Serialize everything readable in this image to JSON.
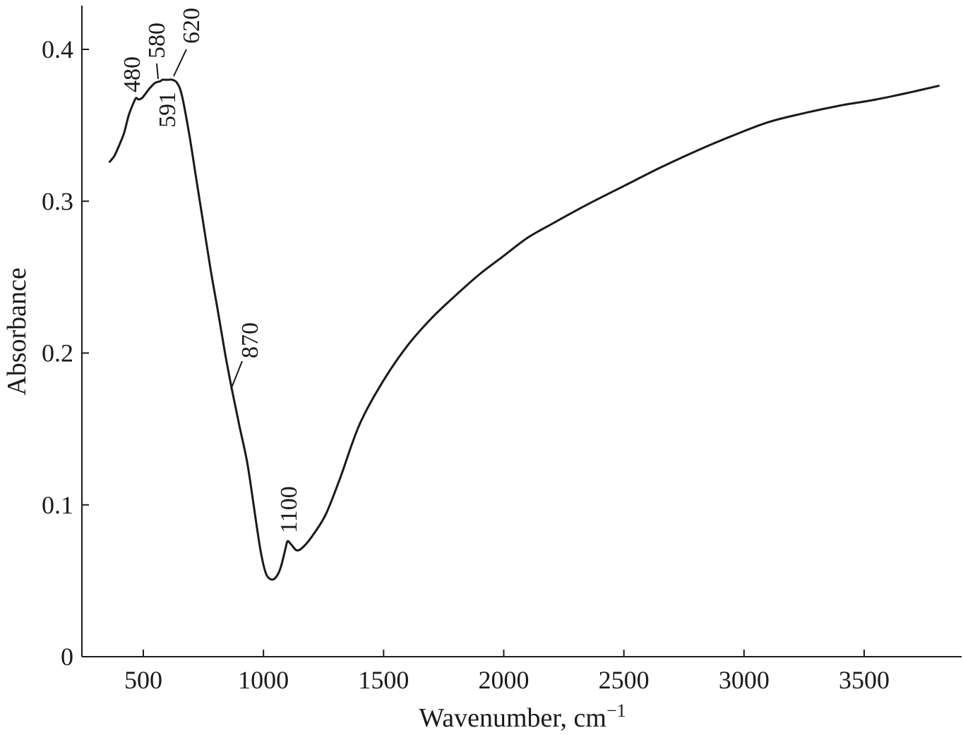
{
  "chart_data": {
    "type": "line",
    "title": "",
    "xlabel": "Wavenumber, cm",
    "xlabel_sup": "−1",
    "ylabel": "Absorbance",
    "xlim": [
      250,
      4000
    ],
    "ylim": [
      0,
      0.42
    ],
    "xticks": [
      500,
      1000,
      1500,
      2000,
      2500,
      3000,
      3500
    ],
    "xtick_labels": [
      "500",
      "1000",
      "1500",
      "2000",
      "2500",
      "3000",
      "3500"
    ],
    "yticks": [
      0,
      0.1,
      0.2,
      0.3,
      0.4
    ],
    "ytick_labels": [
      "0",
      "0.1",
      "0.2",
      "0.3",
      "0.4"
    ],
    "grid": false,
    "series": [
      {
        "x": [
          360,
          380,
          400,
          420,
          440,
          460,
          470,
          480,
          495,
          510,
          530,
          550,
          570,
          580,
          591,
          605,
          620,
          640,
          660,
          690,
          720,
          750,
          780,
          810,
          840,
          870,
          900,
          930,
          950,
          970,
          990,
          1010,
          1030,
          1050,
          1070,
          1090,
          1100,
          1115,
          1140,
          1170,
          1210,
          1260,
          1320,
          1400,
          1500,
          1600,
          1700,
          1800,
          1900,
          2000,
          2100,
          2200,
          2350,
          2500,
          2650,
          2800,
          2950,
          3100,
          3250,
          3400,
          3550,
          3700,
          3810
        ],
        "y": [
          0.326,
          0.33,
          0.337,
          0.345,
          0.357,
          0.365,
          0.368,
          0.367,
          0.368,
          0.371,
          0.375,
          0.378,
          0.379,
          0.38,
          0.38,
          0.38,
          0.38,
          0.378,
          0.37,
          0.345,
          0.315,
          0.285,
          0.255,
          0.228,
          0.2,
          0.175,
          0.152,
          0.13,
          0.11,
          0.088,
          0.068,
          0.055,
          0.051,
          0.052,
          0.058,
          0.07,
          0.076,
          0.074,
          0.07,
          0.073,
          0.081,
          0.094,
          0.118,
          0.153,
          0.182,
          0.205,
          0.223,
          0.238,
          0.252,
          0.264,
          0.276,
          0.285,
          0.298,
          0.31,
          0.322,
          0.333,
          0.343,
          0.352,
          0.358,
          0.363,
          0.367,
          0.372,
          0.376
        ]
      }
    ],
    "annotations": [
      {
        "text": "480",
        "x": 480,
        "y": 0.367
      },
      {
        "text": "580",
        "x": 580,
        "y": 0.38
      },
      {
        "text": "591",
        "x": 591,
        "y": 0.38
      },
      {
        "text": "620",
        "x": 620,
        "y": 0.38
      },
      {
        "text": "870",
        "x": 870,
        "y": 0.175
      },
      {
        "text": "1100",
        "x": 1100,
        "y": 0.076
      }
    ]
  }
}
